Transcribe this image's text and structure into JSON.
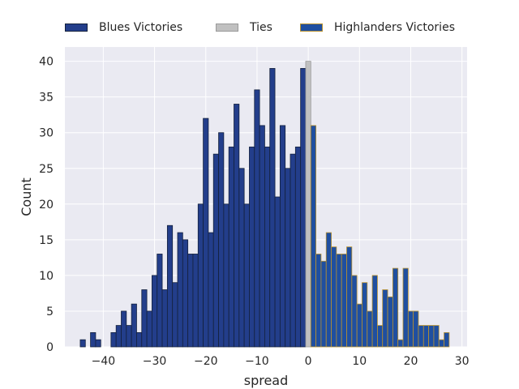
{
  "chart_data": {
    "type": "bar",
    "xlabel": "spread",
    "ylabel": "Count",
    "xlim": [
      -47.5,
      31
    ],
    "ylim": [
      0,
      42
    ],
    "x_ticks": [
      -40,
      -30,
      -20,
      -10,
      0,
      10,
      20,
      30
    ],
    "y_ticks": [
      0,
      5,
      10,
      15,
      20,
      25,
      30,
      35,
      40
    ],
    "grid": true,
    "legend_position": "top",
    "bin_width": 1,
    "background": "#eaeaf2",
    "series": [
      {
        "name": "Blues Victories",
        "color": "#233e8b",
        "edge": "#14213d",
        "x": [
          -44,
          -43,
          -42,
          -41,
          -40,
          -39,
          -38,
          -37,
          -36,
          -35,
          -34,
          -33,
          -32,
          -31,
          -30,
          -29,
          -28,
          -27,
          -26,
          -25,
          -24,
          -23,
          -22,
          -21,
          -20,
          -19,
          -18,
          -17,
          -16,
          -15,
          -14,
          -13,
          -12,
          -11,
          -10,
          -9,
          -8,
          -7,
          -6,
          -5,
          -4,
          -3,
          -2,
          -1
        ],
        "values": [
          1,
          0,
          2,
          1,
          0,
          0,
          2,
          3,
          5,
          3,
          6,
          2,
          8,
          5,
          10,
          13,
          8,
          17,
          9,
          16,
          15,
          13,
          13,
          20,
          32,
          16,
          27,
          30,
          20,
          28,
          34,
          25,
          20,
          28,
          36,
          31,
          28,
          39,
          21,
          31,
          25,
          27,
          28,
          39
        ]
      },
      {
        "name": "Ties",
        "color": "#c0c0c0",
        "edge": "#9a9a9a",
        "x": [
          0
        ],
        "values": [
          40
        ]
      },
      {
        "name": "Highlanders Victories",
        "color": "#1f4fa0",
        "edge": "#b8912f",
        "x": [
          1,
          2,
          3,
          4,
          5,
          6,
          7,
          8,
          9,
          10,
          11,
          12,
          13,
          14,
          15,
          16,
          17,
          18,
          19,
          20,
          21,
          22,
          23,
          24,
          25,
          26,
          27
        ],
        "values": [
          31,
          13,
          12,
          16,
          14,
          13,
          13,
          14,
          10,
          6,
          9,
          5,
          10,
          3,
          8,
          7,
          11,
          1,
          11,
          5,
          5,
          3,
          3,
          3,
          3,
          1,
          2
        ]
      }
    ]
  }
}
